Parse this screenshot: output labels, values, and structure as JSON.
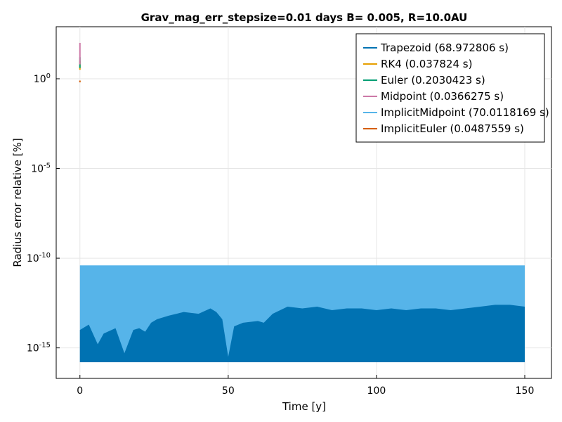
{
  "chart_data": {
    "type": "area",
    "title": "Grav_mag_err_stepsize=0.01 days B= 0.005, R=10.0AU",
    "xlabel": "Time [y]",
    "ylabel": "Radius error relative [%]",
    "xlim": [
      -8,
      159
    ],
    "ylim_log10": [
      -16.7,
      2.9
    ],
    "yscale": "log10",
    "grid": true,
    "legend_position": "top-right",
    "x_ticks": [
      0,
      50,
      100,
      150
    ],
    "y_ticks": [
      {
        "exp": 0,
        "base": "10",
        "sup": "0"
      },
      {
        "exp": -5,
        "base": "10",
        "sup": "-5"
      },
      {
        "exp": -10,
        "base": "10",
        "sup": "-10"
      },
      {
        "exp": -15,
        "base": "10",
        "sup": "-15"
      }
    ],
    "series": [
      {
        "name": "Trapezoid (68.972806 s)",
        "color": "#0072B2",
        "envelope_x": [
          0,
          3,
          6,
          8,
          12,
          15,
          18,
          20,
          22,
          24,
          26,
          30,
          35,
          40,
          44,
          46,
          48,
          50,
          52,
          55,
          60,
          62,
          65,
          70,
          75,
          80,
          85,
          90,
          95,
          100,
          105,
          110,
          115,
          120,
          125,
          130,
          135,
          140,
          145,
          150
        ],
        "envelope_log10": [
          -14.0,
          -13.7,
          -14.8,
          -14.2,
          -13.9,
          -15.3,
          -14.0,
          -13.9,
          -14.1,
          -13.6,
          -13.4,
          -13.2,
          -13.0,
          -13.1,
          -12.8,
          -13.0,
          -13.4,
          -15.5,
          -13.8,
          -13.6,
          -13.5,
          -13.6,
          -13.1,
          -12.7,
          -12.8,
          -12.7,
          -12.9,
          -12.8,
          -12.8,
          -12.9,
          -12.8,
          -12.9,
          -12.8,
          -12.8,
          -12.9,
          -12.8,
          -12.7,
          -12.6,
          -12.6,
          -12.7
        ],
        "floor_log10": -15.8
      },
      {
        "name": "RK4 (0.037824 s)",
        "color": "#E69F00",
        "x": [
          0,
          0
        ],
        "log10_values": [
          0.5,
          1.0
        ]
      },
      {
        "name": "Euler (0.2030423 s)",
        "color": "#009E73",
        "x": [
          0,
          0
        ],
        "log10_values": [
          0.6,
          1.2
        ]
      },
      {
        "name": "Midpoint (0.0366275 s)",
        "color": "#CC79A7",
        "x": [
          0,
          0
        ],
        "log10_values": [
          0.8,
          2.0
        ]
      },
      {
        "name": "ImplicitMidpoint (70.0118169 s)",
        "color": "#56B4E9",
        "x": [
          0,
          150
        ],
        "band_top_log10": -10.4,
        "floor_log10": -15.8
      },
      {
        "name": "ImplicitEuler (0.0487559 s)",
        "color": "#D55E00",
        "x": [
          0,
          0
        ],
        "log10_values": [
          -0.1,
          -0.2
        ]
      }
    ]
  }
}
